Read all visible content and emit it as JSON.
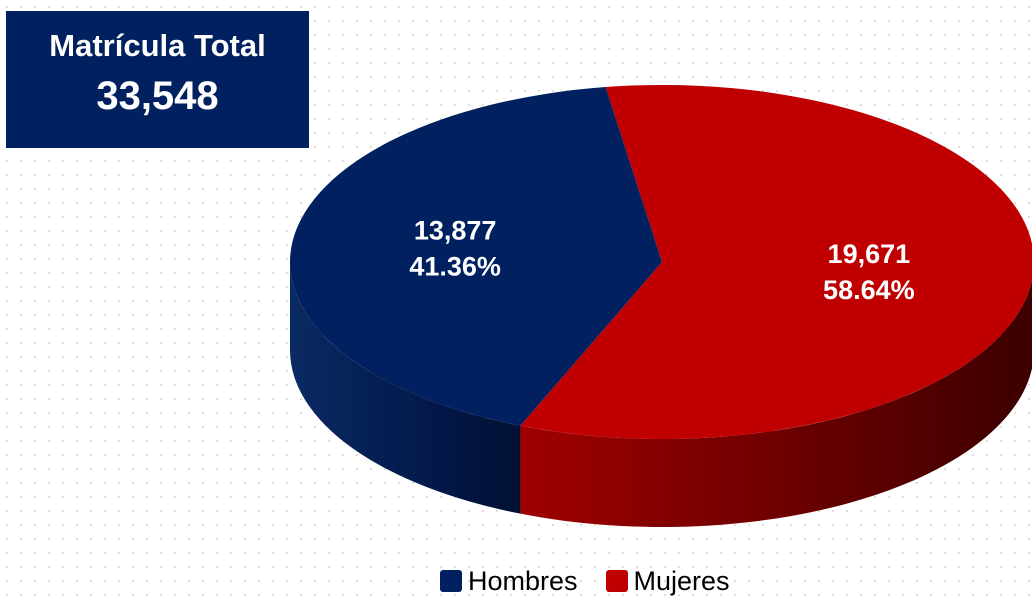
{
  "total": {
    "title": "Matrícula Total",
    "value": "33,548"
  },
  "chart_data": {
    "type": "pie",
    "categories": [
      "Hombres",
      "Mujeres"
    ],
    "values": [
      13877,
      19671
    ],
    "percentages": [
      41.36,
      58.64
    ],
    "value_labels": [
      "13,877",
      "19,671"
    ],
    "percent_labels": [
      "41.36%",
      "58.64%"
    ],
    "colors": [
      "#002060",
      "#C00000"
    ],
    "legend_position": "bottom"
  }
}
